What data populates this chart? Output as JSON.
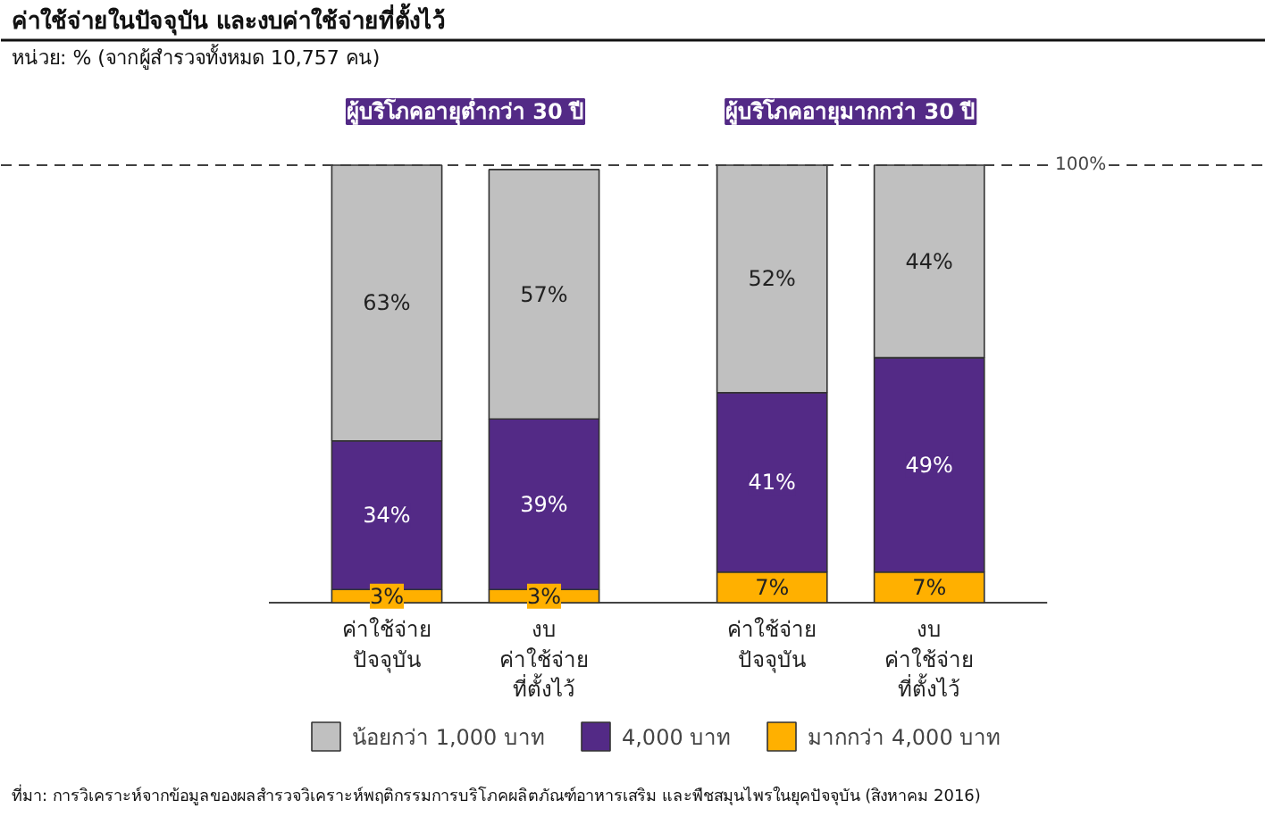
{
  "chart_data": {
    "type": "bar",
    "stacked": true,
    "title": "ค่าใช้จ่ายในปัจจุบัน และงบค่าใช้จ่ายที่ตั้งไว้",
    "subtitle": "หน่วย: % (จากผู้สำรวจทั้งหมด 10,757 คน)",
    "categories": [
      "ค่าใช้จ่าย\nปัจจุบัน",
      "งบ\nค่าใช้จ่าย\nที่ตั้งไว้",
      "ค่าใช้จ่าย\nปัจจุบัน",
      "งบ\nค่าใช้จ่าย\nที่ตั้งไว้"
    ],
    "series": [
      {
        "name": "มากกว่า 4,000 บาท",
        "color": "#ffb000",
        "values": [
          3,
          3,
          7,
          7
        ],
        "value_labels": [
          "3%",
          "3%",
          "7%",
          "7%"
        ]
      },
      {
        "name": "4,000 บาท",
        "color": "#532a86",
        "values": [
          34,
          39,
          41,
          49
        ],
        "value_labels": [
          "34%",
          "39%",
          "41%",
          "49%"
        ]
      },
      {
        "name": "น้อยกว่า 1,000 บาท",
        "color": "#c0c0c0",
        "values": [
          63,
          57,
          52,
          44
        ],
        "value_labels": [
          "63%",
          "57%",
          "52%",
          "44%"
        ]
      }
    ],
    "legend": "bottom",
    "ref_lines": [
      {
        "axis": "y",
        "value": 100,
        "label": "100%",
        "color": "#404040",
        "line_style": "dashed"
      }
    ],
    "annotations": [
      "ผู้บริโภคอายุต่ำกว่า 30 ปี",
      "ผู้บริโภคอายุมากกว่า 30 ปี",
      "ที่มา: การวิเคราะห์จากข้อมูลของผลสำรวจวิเคราะห์พฤติกรรมการบริโภคผลิตภัณฑ์อาหารเสริม และพืชสมุนไพรในยุคปัจจุบัน (สิงหาคม 2016)"
    ]
  }
}
